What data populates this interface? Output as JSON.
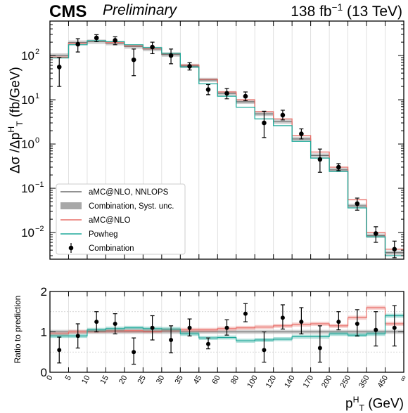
{
  "header": {
    "experiment": "CMS",
    "status": "Preliminary",
    "lumi_prefix": "138 fb",
    "lumi_exp": "−1",
    "lumi_suffix": " (13 TeV)"
  },
  "chart_data": [
    {
      "type": "line",
      "panel": "main",
      "ylabel_prefix": "Δσ /Δp",
      "ylabel_sup": "H",
      "ylabel_sub": "T",
      "ylabel_suffix": " (fb/GeV)",
      "ylog": true,
      "ylim": [
        0.0025,
        600
      ],
      "ytick_labels": [
        "10",
        "10",
        "10",
        "10",
        "10"
      ],
      "ytick_exps": [
        "2",
        "1",
        "0",
        "−1",
        "−2"
      ],
      "ytick_values": [
        100,
        10,
        1,
        0.1,
        0.01
      ],
      "bins_note": "equal-width display bins",
      "bin_edges": [
        "0",
        "5",
        "10",
        "15",
        "20",
        "25",
        "30",
        "35",
        "45",
        "60",
        "80",
        "100",
        "120",
        "140",
        "170",
        "200",
        "250",
        "350",
        "450",
        "∞"
      ],
      "series": [
        {
          "name": "aMC@NLO, NNLOPS",
          "color": "#6e6e6e",
          "values": [
            100,
            195,
            205,
            190,
            160,
            140,
            105,
            58,
            28,
            14,
            9,
            4.8,
            3.2,
            1.3,
            0.55,
            0.26,
            0.04,
            0.0085,
            0.0035
          ]
        },
        {
          "name": "Combination, Syst. unc.",
          "color": "#a8a8a8",
          "band": true,
          "values": [
            100,
            195,
            205,
            190,
            160,
            140,
            105,
            58,
            28,
            14,
            9,
            4.8,
            3.2,
            1.3,
            0.55,
            0.26,
            0.04,
            0.0085,
            0.0035
          ]
        },
        {
          "name": "aMC@NLO",
          "color": "#e8706a",
          "values": [
            92,
            190,
            210,
            195,
            165,
            142,
            110,
            61,
            29,
            15,
            10,
            5.4,
            3.7,
            1.55,
            0.66,
            0.3,
            0.055,
            0.01,
            0.0042
          ]
        },
        {
          "name": "Powheg",
          "color": "#1fa99a",
          "values": [
            88,
            175,
            215,
            205,
            175,
            150,
            112,
            55,
            23,
            12,
            6.8,
            3.7,
            2.6,
            1.15,
            0.48,
            0.24,
            0.036,
            0.008,
            0.003
          ]
        },
        {
          "name": "Combination",
          "color": "#000000",
          "points": true,
          "values": [
            55,
            180,
            250,
            220,
            80,
            155,
            100,
            57,
            17,
            14,
            12,
            3.0,
            4.5,
            1.7,
            0.45,
            0.3,
            0.045,
            0.0095,
            0.0042
          ],
          "err_up": [
            35,
            60,
            45,
            45,
            60,
            45,
            40,
            12,
            5,
            4,
            3,
            2.5,
            1.3,
            0.5,
            0.32,
            0.06,
            0.015,
            0.004,
            0.0022
          ],
          "err_down": [
            35,
            60,
            45,
            45,
            45,
            45,
            35,
            10,
            4,
            3.5,
            2.5,
            1.6,
            1.0,
            0.4,
            0.22,
            0.05,
            0.013,
            0.0035,
            0.0015
          ]
        }
      ],
      "legend_placement": "bottom-left"
    },
    {
      "type": "line",
      "panel": "ratio",
      "ylabel": "Ratio to prediction",
      "ylim": [
        0,
        2
      ],
      "yticks": [
        0,
        1,
        2
      ],
      "xlabel_prefix": "p",
      "xlabel_sup": "H",
      "xlabel_sub": "T",
      "xlabel_suffix": " (GeV)",
      "series": [
        {
          "name": "aMC@NLO",
          "color": "#e8706a",
          "values": [
            0.95,
            1.0,
            1.02,
            1.03,
            1.03,
            1.02,
            1.04,
            1.05,
            1.05,
            1.08,
            1.1,
            1.12,
            1.15,
            1.18,
            1.2,
            1.15,
            1.35,
            1.6,
            1.2
          ]
        },
        {
          "name": "Powheg",
          "color": "#1fa99a",
          "values": [
            0.9,
            0.9,
            1.05,
            1.08,
            1.1,
            1.08,
            1.07,
            0.95,
            0.85,
            0.86,
            0.78,
            0.8,
            0.82,
            0.88,
            0.88,
            0.95,
            0.92,
            0.95,
            1.4
          ]
        },
        {
          "name": "Combination",
          "color": "#000000",
          "points": true,
          "values": [
            0.55,
            0.9,
            1.25,
            1.2,
            0.5,
            1.1,
            0.8,
            1.1,
            0.7,
            1.1,
            1.45,
            0.55,
            1.35,
            1.25,
            0.6,
            1.25,
            1.2,
            1.05,
            1.1
          ],
          "err_up": [
            0.32,
            0.3,
            0.25,
            0.25,
            0.35,
            0.3,
            0.35,
            0.22,
            0.15,
            0.2,
            0.25,
            0.45,
            0.32,
            0.35,
            0.55,
            0.25,
            0.35,
            0.45,
            0.55
          ],
          "err_down": [
            0.32,
            0.3,
            0.25,
            0.25,
            0.3,
            0.3,
            0.32,
            0.2,
            0.12,
            0.18,
            0.2,
            0.3,
            0.28,
            0.3,
            0.35,
            0.2,
            0.3,
            0.4,
            0.45
          ]
        }
      ]
    }
  ]
}
